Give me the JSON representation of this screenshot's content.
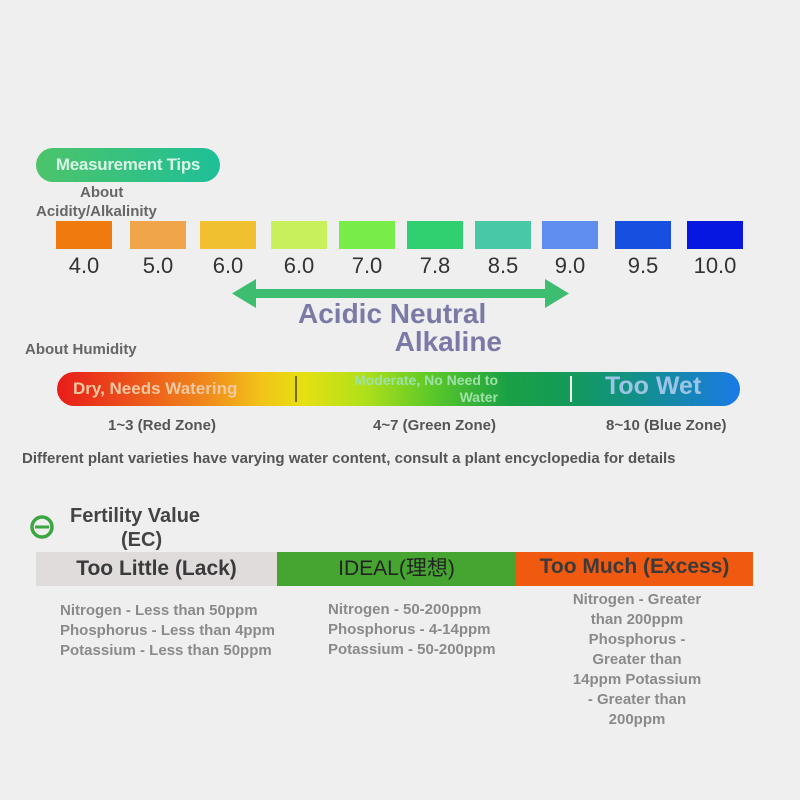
{
  "tips_label": "Measurement Tips",
  "ph": {
    "heading_line1": "About",
    "heading_line2": "Acidity/Alkalinity",
    "swatches": [
      {
        "value": "4.0",
        "color": "#ef7a0e"
      },
      {
        "value": "5.0",
        "color": "#f0a54a"
      },
      {
        "value": "6.0",
        "color": "#f0c030"
      },
      {
        "value": "6.0",
        "color": "#c8f05a"
      },
      {
        "value": "7.0",
        "color": "#78ec48"
      },
      {
        "value": "7.8",
        "color": "#30d070"
      },
      {
        "value": "8.5",
        "color": "#48c8a4"
      },
      {
        "value": "9.0",
        "color": "#608ef0"
      },
      {
        "value": "9.5",
        "color": "#1650e0"
      },
      {
        "value": "10.0",
        "color": "#0618e0"
      }
    ],
    "range_line1": "Acidic Neutral",
    "range_line2": "Alkaline",
    "arrow_color": "#3dbd70"
  },
  "humidity": {
    "heading": "About Humidity",
    "dry": "Dry, Needs Watering",
    "moderate_line1": "Moderate, No Need to",
    "moderate_line2": "Water",
    "wet": "Too Wet",
    "zones": [
      "1~3 (Red Zone)",
      "4~7 (Green Zone)",
      "8~10 (Blue Zone)"
    ],
    "note": "Different plant varieties have varying water content, consult a plant encyclopedia for details"
  },
  "fertility": {
    "title_line1": "Fertility Value",
    "title_line2": "(EC)",
    "icon": "circle-minus-icon",
    "segments": [
      {
        "label": "Too Little (Lack)",
        "color": "#e0dcdc",
        "lines": [
          "Nitrogen - Less than 50ppm",
          "Phosphorus - Less than 4ppm",
          "Potassium - Less than 50ppm"
        ]
      },
      {
        "label": "IDEAL(理想)",
        "color": "#46a530",
        "lines": [
          "Nitrogen - 50-200ppm",
          "Phosphorus - 4-14ppm",
          "Potassium - 50-200ppm"
        ]
      },
      {
        "label": "Too Much (Excess)",
        "color": "#f05a10",
        "lines": [
          "Nitrogen - Greater",
          "than 200ppm",
          "Phosphorus -",
          "Greater than",
          "14ppm Potassium",
          "- Greater than",
          "200ppm"
        ]
      }
    ]
  }
}
